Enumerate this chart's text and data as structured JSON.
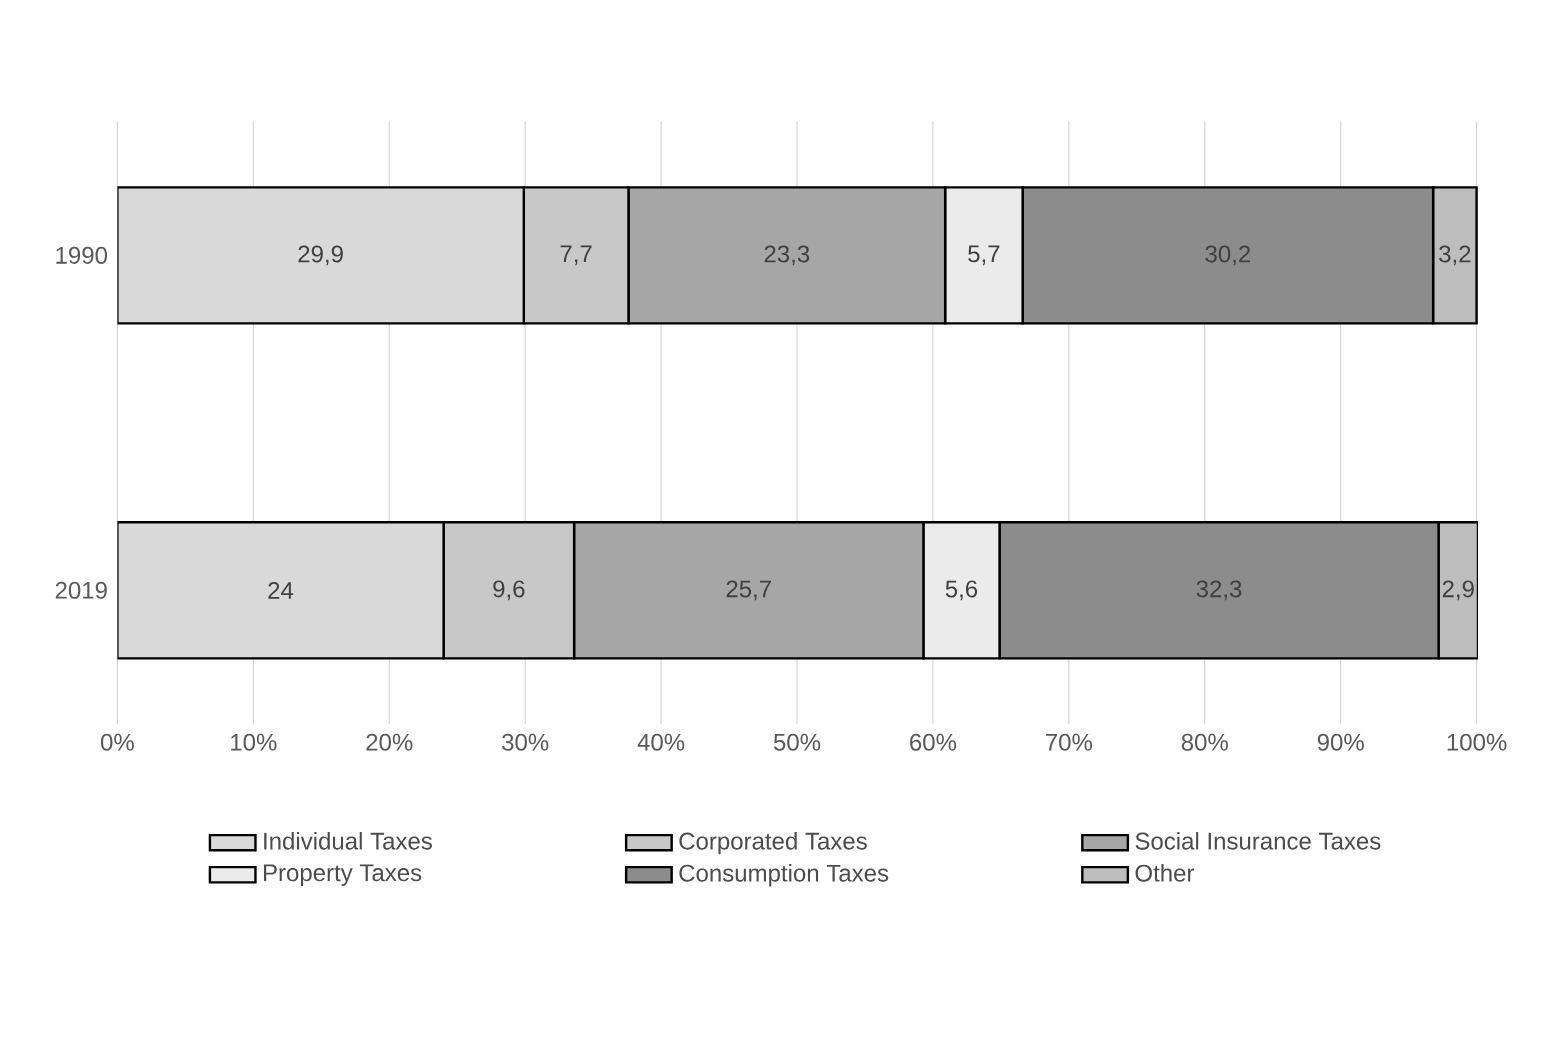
{
  "chart_data": {
    "type": "bar",
    "orientation": "horizontal",
    "stacked": true,
    "categories": [
      "1990",
      "2019"
    ],
    "xlim": [
      0,
      100.1
    ],
    "xticks": [
      {
        "value": 0,
        "label": "0%"
      },
      {
        "value": 10,
        "label": "10%"
      },
      {
        "value": 20,
        "label": "20%"
      },
      {
        "value": 30,
        "label": "30%"
      },
      {
        "value": 40,
        "label": "40%"
      },
      {
        "value": 50,
        "label": "50%"
      },
      {
        "value": 60,
        "label": "60%"
      },
      {
        "value": 70,
        "label": "70%"
      },
      {
        "value": 80,
        "label": "80%"
      },
      {
        "value": 90,
        "label": "90%"
      },
      {
        "value": 100,
        "label": "100%"
      }
    ],
    "grid": "x",
    "legend": "bottom",
    "series": [
      {
        "name": "Individual Taxes",
        "color": "#d9d9d9",
        "values": [
          29.9,
          24
        ],
        "value_labels": [
          "29,9",
          "24"
        ]
      },
      {
        "name": "Corporated Taxes",
        "color": "#c8c8c8",
        "values": [
          7.7,
          9.6
        ],
        "value_labels": [
          "7,7",
          "9,6"
        ]
      },
      {
        "name": "Social Insurance Taxes",
        "color": "#a6a6a6",
        "values": [
          23.3,
          25.7
        ],
        "value_labels": [
          "23,3",
          "25,7"
        ]
      },
      {
        "name": "Property Taxes",
        "color": "#ebebeb",
        "values": [
          5.7,
          5.6
        ],
        "value_labels": [
          "5,7",
          "5,6"
        ]
      },
      {
        "name": "Consumption Taxes",
        "color": "#8c8c8c",
        "values": [
          30.2,
          32.3
        ],
        "value_labels": [
          "30,2",
          "32,3"
        ]
      },
      {
        "name": "Other",
        "color": "#bdbdbd",
        "values": [
          3.2,
          2.9
        ],
        "value_labels": [
          "3,2",
          "2,9"
        ]
      }
    ]
  }
}
